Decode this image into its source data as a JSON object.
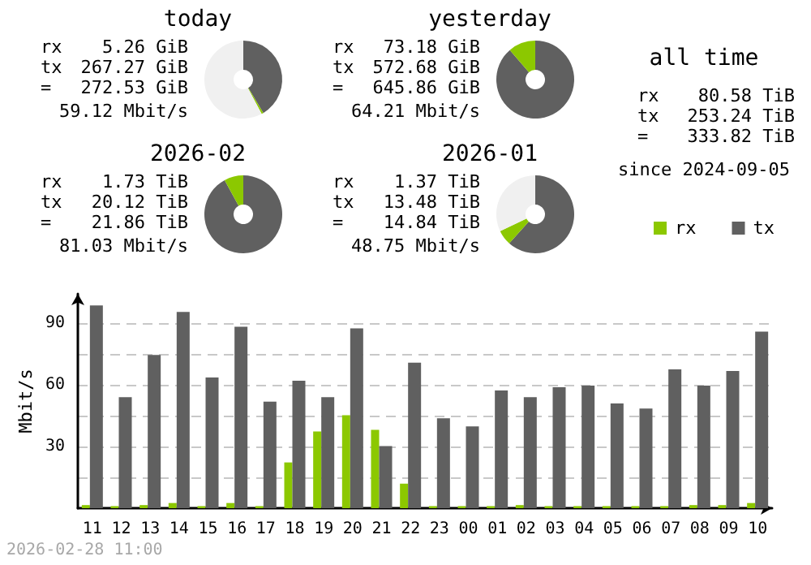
{
  "chart_data": [
    {
      "type": "donut",
      "title": "today",
      "categories": [
        null,
        null,
        null
      ],
      "values": [
        41.38,
        0.81,
        57.81
      ],
      "colors": [
        "#606060",
        "#8cc800",
        "#f0f0f0"
      ],
      "annotations": [
        "rx",
        "5.26 GiB",
        "tx",
        "267.27 GiB",
        "=",
        "272.53 GiB",
        "59.12 Mbit/s"
      ]
    },
    {
      "type": "donut",
      "title": "yesterday",
      "categories": [
        null,
        null
      ],
      "values": [
        88.67,
        11.33
      ],
      "colors": [
        "#606060",
        "#8cc800"
      ],
      "annotations": [
        "rx",
        "73.18 GiB",
        "tx",
        "572.68 GiB",
        "=",
        "645.86 GiB",
        "64.21 Mbit/s"
      ]
    },
    {
      "type": "donut",
      "title": "2026-02",
      "categories": [
        null,
        null
      ],
      "values": [
        92.04,
        7.96
      ],
      "colors": [
        "#606060",
        "#8cc800"
      ],
      "annotations": [
        "rx",
        "1.73 TiB",
        "tx",
        "20.12 TiB",
        "=",
        "21.86 TiB",
        "81.03 Mbit/s"
      ]
    },
    {
      "type": "donut",
      "title": "2026-01",
      "categories": [
        null,
        null,
        null
      ],
      "values": [
        61.66,
        6.27,
        32.07
      ],
      "colors": [
        "#606060",
        "#8cc800",
        "#f0f0f0"
      ],
      "annotations": [
        "rx",
        "1.37 TiB",
        "tx",
        "13.48 TiB",
        "=",
        "14.84 TiB",
        "48.75 Mbit/s"
      ]
    },
    {
      "type": "other",
      "title": "all time",
      "annotations": [
        "rx",
        "80.58 TiB",
        "tx",
        "253.24 TiB",
        "=",
        "333.82 TiB",
        "since 2024-09-05"
      ]
    },
    {
      "type": "bar",
      "ylabel": "Mbit/s",
      "categories": [
        "11",
        "12",
        "13",
        "14",
        "15",
        "16",
        "17",
        "18",
        "19",
        "20",
        "21",
        "22",
        "23",
        "00",
        "01",
        "02",
        "03",
        "04",
        "05",
        "06",
        "07",
        "08",
        "09",
        "10"
      ],
      "series": [
        {
          "name": "rx",
          "color": "#8cc800",
          "values": [
            1.5,
            1,
            1.5,
            2.5,
            1,
            2.5,
            1,
            22.2,
            37.2,
            45.1,
            38,
            11.9,
            1,
            1,
            1,
            1.5,
            1,
            1,
            1,
            1,
            1,
            1.5,
            1.5,
            2.5
          ]
        },
        {
          "name": "tx",
          "color": "#606060",
          "values": [
            98.4,
            53.9,
            74.4,
            95.2,
            63.4,
            88,
            51.7,
            61.8,
            53.9,
            87.3,
            30.1,
            70.6,
            43.6,
            39.7,
            57.1,
            53.9,
            58.7,
            59.5,
            50.8,
            48.4,
            67.4,
            59.5,
            66.6,
            85.7
          ]
        }
      ],
      "ylim": [
        0,
        104
      ],
      "yticks": [
        {
          "value": 15,
          "label": null
        },
        30,
        {
          "value": 45,
          "label": null
        },
        60,
        {
          "value": 75,
          "label": null
        },
        90
      ],
      "grid": "y",
      "legend": "top right",
      "annotations": [
        "2026-02-28 11:00"
      ]
    }
  ]
}
